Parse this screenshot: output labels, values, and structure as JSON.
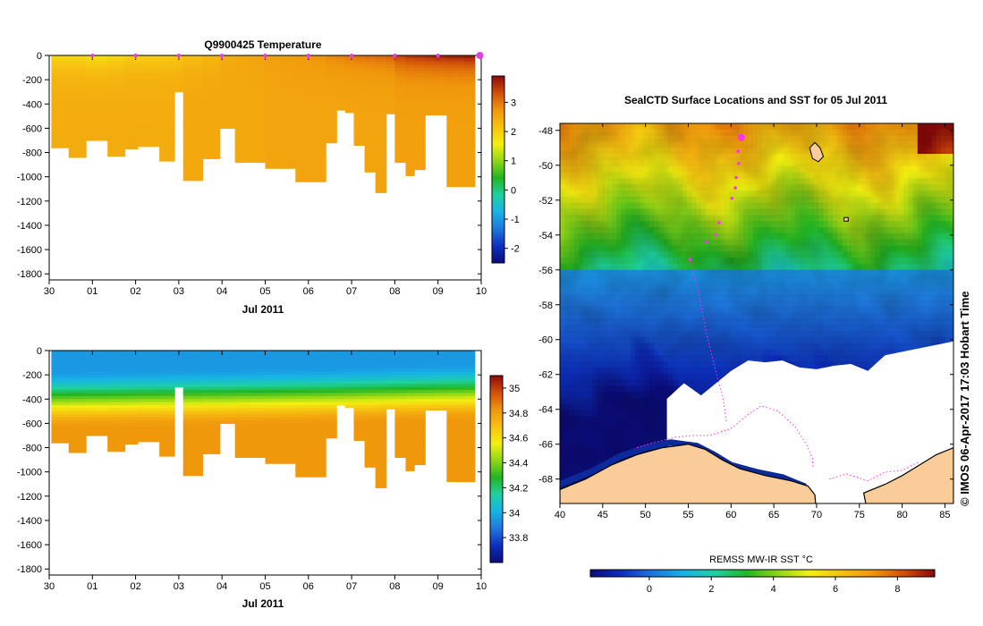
{
  "chart_data": [
    {
      "id": "temperature",
      "type": "heatmap",
      "title": "Q9900425  Temperature",
      "xlabel": "Jul 2011",
      "x_ticks": [
        "30",
        "01",
        "02",
        "03",
        "04",
        "05",
        "06",
        "07",
        "08",
        "09",
        "10"
      ],
      "x_range": [
        0,
        10
      ],
      "ylim": [
        -1850,
        0
      ],
      "y_ticks": [
        0,
        -200,
        -400,
        -600,
        -800,
        -1000,
        -1200,
        -1400,
        -1600,
        -1800
      ],
      "colorbar": {
        "range": [
          -2.5,
          3.9
        ],
        "ticks": [
          -2,
          -1,
          0,
          1,
          2,
          3
        ],
        "stops": [
          "#0c0c7a",
          "#0d2fbf",
          "#1f77dd",
          "#17b3e6",
          "#1ed1a0",
          "#22b522",
          "#8ed617",
          "#f3ef10",
          "#f7c211",
          "#f0960c",
          "#d2500a",
          "#8b0a0a"
        ]
      },
      "profile_markers": [
        1,
        2,
        3,
        4,
        5,
        6,
        7,
        8,
        9,
        9.97
      ],
      "profiles": [
        {
          "x": 0.05,
          "depth": 760,
          "surf": 1.9,
          "deep": 2.45
        },
        {
          "x": 0.45,
          "depth": 840,
          "surf": 1.9,
          "deep": 2.45
        },
        {
          "x": 0.85,
          "depth": 700,
          "surf": 1.8,
          "deep": 2.45
        },
        {
          "x": 1.35,
          "depth": 830,
          "surf": 1.9,
          "deep": 2.45
        },
        {
          "x": 1.75,
          "depth": 770,
          "surf": 2.0,
          "deep": 2.45
        },
        {
          "x": 2.05,
          "depth": 750,
          "surf": 2.0,
          "deep": 2.45
        },
        {
          "x": 2.55,
          "depth": 870,
          "surf": 2.05,
          "deep": 2.45
        },
        {
          "x": 2.9,
          "depth": 300,
          "surf": 2.1,
          "deep": 2.45
        },
        {
          "x": 3.1,
          "depth": 1030,
          "surf": 2.2,
          "deep": 2.5
        },
        {
          "x": 3.55,
          "depth": 850,
          "surf": 2.3,
          "deep": 2.5
        },
        {
          "x": 3.95,
          "depth": 600,
          "surf": 2.45,
          "deep": 2.5
        },
        {
          "x": 4.3,
          "depth": 880,
          "surf": 2.5,
          "deep": 2.5
        },
        {
          "x": 4.65,
          "depth": 880,
          "surf": 2.55,
          "deep": 2.5
        },
        {
          "x": 5.0,
          "depth": 930,
          "surf": 2.6,
          "deep": 2.55
        },
        {
          "x": 5.35,
          "depth": 930,
          "surf": 2.65,
          "deep": 2.55
        },
        {
          "x": 5.7,
          "depth": 1040,
          "surf": 2.7,
          "deep": 2.55
        },
        {
          "x": 6.05,
          "depth": 1040,
          "surf": 2.75,
          "deep": 2.55
        },
        {
          "x": 6.4,
          "depth": 720,
          "surf": 2.85,
          "deep": 2.55
        },
        {
          "x": 6.65,
          "depth": 450,
          "surf": 2.9,
          "deep": 2.55
        },
        {
          "x": 6.85,
          "depth": 470,
          "surf": 2.95,
          "deep": 2.55
        },
        {
          "x": 7.05,
          "depth": 740,
          "surf": 3.0,
          "deep": 2.55
        },
        {
          "x": 7.3,
          "depth": 960,
          "surf": 3.05,
          "deep": 2.55
        },
        {
          "x": 7.55,
          "depth": 1130,
          "surf": 3.1,
          "deep": 2.55
        },
        {
          "x": 7.8,
          "depth": 480,
          "surf": 3.15,
          "deep": 2.55
        },
        {
          "x": 8.0,
          "depth": 880,
          "surf": 3.4,
          "deep": 2.6
        },
        {
          "x": 8.25,
          "depth": 990,
          "surf": 3.5,
          "deep": 2.6
        },
        {
          "x": 8.45,
          "depth": 940,
          "surf": 3.55,
          "deep": 2.6
        },
        {
          "x": 8.7,
          "depth": 490,
          "surf": 3.6,
          "deep": 2.6
        },
        {
          "x": 8.9,
          "depth": 490,
          "surf": 3.65,
          "deep": 2.6
        },
        {
          "x": 9.2,
          "depth": 1080,
          "surf": 3.7,
          "deep": 2.6
        },
        {
          "x": 9.6,
          "depth": 1080,
          "surf": 3.75,
          "deep": 2.6
        }
      ]
    },
    {
      "id": "salinity",
      "type": "heatmap",
      "title": "",
      "xlabel": "Jul 2011",
      "x_ticks": [
        "30",
        "01",
        "02",
        "03",
        "04",
        "05",
        "06",
        "07",
        "08",
        "09",
        "10"
      ],
      "x_range": [
        0,
        10
      ],
      "ylim": [
        -1850,
        0
      ],
      "y_ticks": [
        0,
        -200,
        -400,
        -600,
        -800,
        -1000,
        -1200,
        -1400,
        -1600,
        -1800
      ],
      "colorbar": {
        "range": [
          33.6,
          35.1
        ],
        "ticks": [
          33.8,
          34,
          34.2,
          34.4,
          34.6,
          34.8,
          35
        ],
        "tick_labels": [
          "33.8",
          "34",
          "34.2",
          "34.4",
          "34.6",
          "34.8",
          "35"
        ],
        "stops": [
          "#0c0c7a",
          "#0d2fbf",
          "#1f77dd",
          "#17b3e6",
          "#1ed1a0",
          "#22b522",
          "#8ed617",
          "#f3ef10",
          "#f7c211",
          "#f0960c",
          "#d2500a",
          "#8b0a0a"
        ]
      },
      "surface_value": 33.95,
      "deep_value": 34.82,
      "profiles_ref": "temperature"
    },
    {
      "id": "sst_map",
      "type": "heatmap",
      "title": "SealCTD Surface Locations and SST for 05 Jul 2011",
      "xlabel": "",
      "x_ticks": [
        40,
        45,
        50,
        55,
        60,
        65,
        70,
        75,
        80,
        85
      ],
      "xlim": [
        40,
        86
      ],
      "ylim": [
        -69.4,
        -47.6
      ],
      "y_ticks": [
        -48,
        -50,
        -52,
        -54,
        -56,
        -58,
        -60,
        -62,
        -64,
        -66,
        -68
      ],
      "colorbar": {
        "label": "REMSS MW-IR SST °C",
        "range": [
          -1.9,
          9.2
        ],
        "ticks": [
          0,
          2,
          4,
          6,
          8
        ],
        "stops": [
          "#0c0c7a",
          "#0d2fbf",
          "#1f77dd",
          "#17b3e6",
          "#1ed1a0",
          "#22b522",
          "#8ed617",
          "#f3ef10",
          "#f7c211",
          "#f0960c",
          "#d2500a",
          "#8b0a0a"
        ]
      },
      "credit": "© IMOS 06-Apr-2017 17:03 Hobart Time",
      "track": [
        {
          "lon": 61.2,
          "lat": -48.4
        },
        {
          "lon": 60.8,
          "lat": -49.2
        },
        {
          "lon": 60.9,
          "lat": -49.9
        },
        {
          "lon": 60.6,
          "lat": -50.7
        },
        {
          "lon": 60.5,
          "lat": -51.3
        },
        {
          "lon": 60.1,
          "lat": -51.9
        },
        {
          "lon": 58.6,
          "lat": -53.3
        },
        {
          "lon": 58.2,
          "lat": -54.0
        },
        {
          "lon": 57.1,
          "lat": -54.4
        },
        {
          "lon": 55.2,
          "lat": -55.4
        }
      ],
      "track_lines": [
        [
          [
            55.2,
            -55.4
          ],
          [
            56.3,
            -57.5
          ],
          [
            57.0,
            -59.4
          ],
          [
            58.0,
            -61.4
          ],
          [
            59.0,
            -63.2
          ],
          [
            59.5,
            -64.8
          ]
        ],
        [
          [
            49.0,
            -66.2
          ],
          [
            51.0,
            -65.9
          ],
          [
            53.5,
            -65.6
          ],
          [
            55.5,
            -65.5
          ],
          [
            57.5,
            -65.5
          ],
          [
            60.0,
            -65.1
          ],
          [
            62.0,
            -64.3
          ],
          [
            63.5,
            -63.8
          ],
          [
            65.5,
            -64.1
          ],
          [
            67.5,
            -65.0
          ],
          [
            68.8,
            -66.0
          ],
          [
            69.5,
            -66.8
          ],
          [
            69.6,
            -67.4
          ]
        ],
        [
          [
            71.5,
            -68.0
          ],
          [
            73.5,
            -67.7
          ],
          [
            76.0,
            -68.1
          ],
          [
            78.0,
            -67.6
          ],
          [
            80.0,
            -67.5
          ],
          [
            82.0,
            -67.0
          ]
        ]
      ]
    }
  ]
}
